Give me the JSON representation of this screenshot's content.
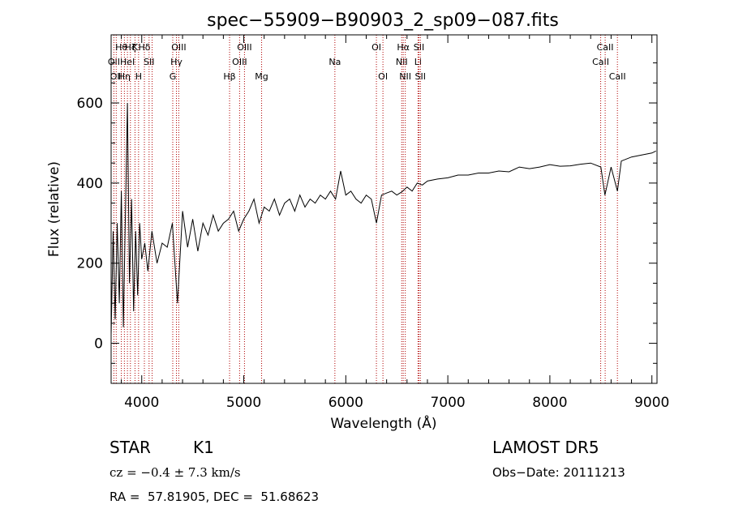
{
  "chart_data": {
    "type": "line",
    "title": "spec−55909−B90903_2_sp09−087.fits",
    "xlabel": "Wavelength (Å)",
    "ylabel": "Flux (relative)",
    "xlim": [
      3700,
      9050
    ],
    "ylim": [
      -100,
      770
    ],
    "x_ticks": [
      4000,
      5000,
      6000,
      7000,
      8000,
      9000
    ],
    "y_ticks": [
      0,
      200,
      400,
      600
    ],
    "grid": false,
    "series": [
      {
        "x": [
          3700,
          3720,
          3740,
          3760,
          3780,
          3800,
          3820,
          3840,
          3860,
          3880,
          3900,
          3920,
          3940,
          3960,
          3980,
          4000,
          4030,
          4060,
          4100,
          4150,
          4200,
          4250,
          4300,
          4350,
          4400,
          4450,
          4500,
          4550,
          4600,
          4650,
          4700,
          4750,
          4800,
          4850,
          4900,
          4950,
          5000,
          5050,
          5100,
          5150,
          5200,
          5250,
          5300,
          5350,
          5400,
          5450,
          5500,
          5550,
          5600,
          5650,
          5700,
          5750,
          5800,
          5850,
          5900,
          5950,
          6000,
          6050,
          6100,
          6150,
          6200,
          6250,
          6300,
          6350,
          6400,
          6450,
          6500,
          6550,
          6600,
          6650,
          6700,
          6750,
          6800,
          6900,
          7000,
          7100,
          7200,
          7300,
          7400,
          7500,
          7600,
          7700,
          7800,
          7900,
          8000,
          8100,
          8200,
          8300,
          8400,
          8500,
          8540,
          8600,
          8662,
          8700,
          8800,
          8900,
          9000,
          9040
        ],
        "y": [
          20,
          280,
          60,
          300,
          100,
          380,
          40,
          320,
          600,
          150,
          360,
          80,
          280,
          120,
          300,
          210,
          250,
          180,
          280,
          200,
          250,
          240,
          300,
          100,
          330,
          240,
          310,
          230,
          300,
          270,
          320,
          280,
          300,
          310,
          330,
          280,
          310,
          330,
          360,
          300,
          340,
          330,
          360,
          320,
          350,
          360,
          330,
          370,
          340,
          360,
          350,
          370,
          360,
          380,
          360,
          430,
          370,
          380,
          360,
          350,
          370,
          360,
          300,
          370,
          375,
          380,
          370,
          378,
          390,
          380,
          400,
          395,
          405,
          410,
          413,
          420,
          420,
          425,
          425,
          430,
          428,
          440,
          436,
          440,
          446,
          442,
          443,
          447,
          450,
          440,
          370,
          440,
          380,
          455,
          465,
          470,
          475,
          480
        ]
      }
    ],
    "lines": [
      {
        "x": 3727,
        "label": "OII",
        "row": 1
      },
      {
        "x": 3750,
        "label": "OII",
        "row": 2
      },
      {
        "x": 3800,
        "label": "Hθ",
        "row": 0
      },
      {
        "x": 3830,
        "label": "Hη",
        "row": 2
      },
      {
        "x": 3860,
        "label": "HeI",
        "row": 1
      },
      {
        "x": 3889,
        "label": "Hζ",
        "row": 0
      },
      {
        "x": 3934,
        "label": "K",
        "row": 0
      },
      {
        "x": 3969,
        "label": "H",
        "row": 2
      },
      {
        "x": 4026,
        "label": "Hδ",
        "row": 0
      },
      {
        "x": 4072,
        "label": "SII",
        "row": 1
      },
      {
        "x": 4102,
        "label": "",
        "row": 0
      },
      {
        "x": 4304,
        "label": "G",
        "row": 2
      },
      {
        "x": 4340,
        "label": "Hγ",
        "row": 1
      },
      {
        "x": 4363,
        "label": "OIII",
        "row": 0
      },
      {
        "x": 4861,
        "label": "Hβ",
        "row": 2
      },
      {
        "x": 4959,
        "label": "OIII",
        "row": 1
      },
      {
        "x": 5007,
        "label": "OIII",
        "row": 0
      },
      {
        "x": 5175,
        "label": "Mg",
        "row": 2
      },
      {
        "x": 5893,
        "label": "Na",
        "row": 1
      },
      {
        "x": 6300,
        "label": "OI",
        "row": 0
      },
      {
        "x": 6364,
        "label": "OI",
        "row": 2
      },
      {
        "x": 6548,
        "label": "NII",
        "row": 1
      },
      {
        "x": 6563,
        "label": "Hα",
        "row": 0
      },
      {
        "x": 6583,
        "label": "NII",
        "row": 2
      },
      {
        "x": 6708,
        "label": "Li",
        "row": 1
      },
      {
        "x": 6717,
        "label": "SII",
        "row": 0
      },
      {
        "x": 6731,
        "label": "SII",
        "row": 2
      },
      {
        "x": 8498,
        "label": "CaII",
        "row": 1
      },
      {
        "x": 8542,
        "label": "CaII",
        "row": 0
      },
      {
        "x": 8662,
        "label": "CaII",
        "row": 2
      }
    ]
  },
  "info": {
    "class": "STAR",
    "subclass": "K1",
    "survey": "LAMOST DR5",
    "cz": "cz = −0.4 ± 7.3 km/s",
    "obs_date": "Obs−Date: 20111213",
    "coords": "RA =  57.81905, DEC =  51.68623"
  }
}
